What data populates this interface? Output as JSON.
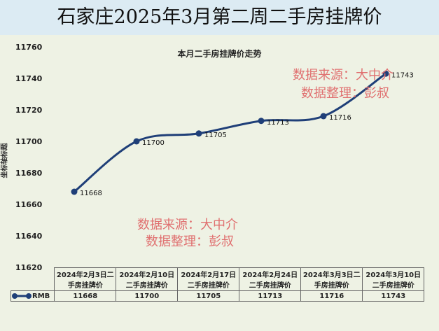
{
  "title": "石家庄2025年3月第二周二手房挂牌价",
  "watermarks": {
    "source": "数据来源：大中介",
    "editor": "数据整理：彭叔"
  },
  "chart_data": {
    "type": "line",
    "title": "本月二手房挂牌价走势",
    "ylabel": "坐标轴标题",
    "ylim": [
      11620,
      11760
    ],
    "yticks": [
      11760,
      11740,
      11720,
      11700,
      11680,
      11660,
      11640,
      11620
    ],
    "categories": [
      "2024年2月3日二手房挂牌价",
      "2024年2月10日二手房挂牌价",
      "2024年2月17日二手房挂牌价",
      "2024年2月24日二手房挂牌价",
      "2024年3月3日二手房挂牌价",
      "2024年3月10日二手房挂牌价"
    ],
    "series": [
      {
        "name": "RMB",
        "values": [
          11668,
          11700,
          11705,
          11713,
          11716,
          11743
        ]
      }
    ],
    "color": "#1f3f78",
    "data_table": true,
    "grid": false
  }
}
